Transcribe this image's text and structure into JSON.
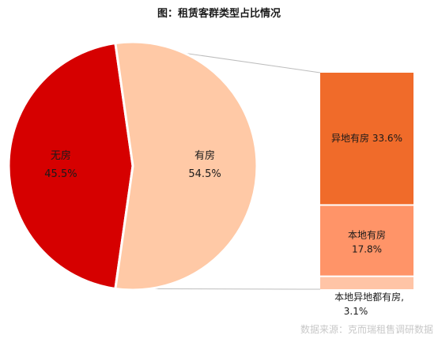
{
  "chart_data": {
    "type": "pie",
    "title": "图：租赁客群类型占比情况",
    "pie": {
      "slices": [
        {
          "label": "无房",
          "value": 45.5,
          "value_label": "45.5%",
          "color": "#d60000"
        },
        {
          "label": "有房",
          "value": 54.5,
          "value_label": "54.5%",
          "color": "#ffc9a6"
        }
      ]
    },
    "breakdown": {
      "parent": "有房",
      "type": "stacked-bar",
      "segments": [
        {
          "label": "异地有房",
          "value": 33.6,
          "value_label": "33.6%",
          "color": "#f06b2a"
        },
        {
          "label": "本地有房",
          "value": 17.8,
          "value_label": "17.8%",
          "color": "#ff9468"
        },
        {
          "label": "本地异地都有房,",
          "value": 3.1,
          "value_label": "3.1%",
          "color": "#ffc4a6"
        }
      ]
    }
  },
  "source": "数据来源：克而瑞租售调研数据"
}
